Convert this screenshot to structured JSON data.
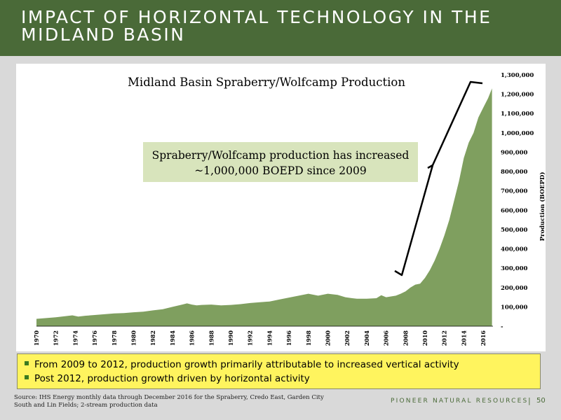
{
  "header": {
    "title": "IMPACT OF HORIZONTAL TECHNOLOGY IN THE MIDLAND BASIN"
  },
  "chart_data": {
    "type": "area",
    "title": "Midland Basin Spraberry/Wolfcamp Production",
    "ylabel": "Production (BOEPD)",
    "xlabel": "",
    "xlim": [
      1970,
      2017
    ],
    "ylim": [
      0,
      1300000
    ],
    "y_ticks": [
      "-",
      "100,000",
      "200,000",
      "300,000",
      "400,000",
      "500,000",
      "600,000",
      "700,000",
      "800,000",
      "900,000",
      "1,000,000",
      "1,100,000",
      "1,200,000",
      "1,300,000"
    ],
    "x_ticks": [
      "1970",
      "1972",
      "1974",
      "1976",
      "1978",
      "1980",
      "1982",
      "1984",
      "1986",
      "1988",
      "1990",
      "1992",
      "1994",
      "1996",
      "1998",
      "2000",
      "2002",
      "2004",
      "2006",
      "2008",
      "2010",
      "2012",
      "2014",
      "2016"
    ],
    "fill_color": "#7f9f5f",
    "grid": false,
    "annotation": "Spraberry/Wolfcamp production has increased ~1,000,000 BOEPD since 2009",
    "series": [
      {
        "x": [
          1970,
          1971,
          1972,
          1973,
          1973.7,
          1974.3,
          1975,
          1976,
          1977,
          1978,
          1979,
          1980,
          1981,
          1982,
          1983,
          1984,
          1985,
          1985.5,
          1986,
          1986.5,
          1987,
          1988,
          1989,
          1990,
          1991,
          1992,
          1993,
          1994,
          1995,
          1996,
          1997,
          1998,
          1999,
          2000,
          2001,
          2001.8,
          2002.5,
          2003,
          2004,
          2005,
          2005.5,
          2006,
          2007,
          2007.5,
          2008,
          2008.5,
          2009,
          2009.5,
          2010,
          2010.5,
          2011,
          2011.5,
          2012,
          2012.5,
          2013,
          2013.5,
          2014,
          2014.5,
          2015,
          2015.5,
          2016,
          2016.5,
          2016.9
        ],
        "values": [
          38000,
          42000,
          46000,
          52000,
          56000,
          50000,
          54000,
          58000,
          62000,
          66000,
          68000,
          72000,
          75000,
          82000,
          88000,
          100000,
          112000,
          118000,
          112000,
          108000,
          110000,
          112000,
          108000,
          110000,
          114000,
          120000,
          124000,
          128000,
          138000,
          148000,
          158000,
          168000,
          158000,
          168000,
          162000,
          150000,
          145000,
          142000,
          142000,
          145000,
          160000,
          150000,
          158000,
          168000,
          180000,
          200000,
          215000,
          220000,
          250000,
          290000,
          340000,
          400000,
          470000,
          550000,
          650000,
          750000,
          870000,
          950000,
          1000000,
          1080000,
          1130000,
          1180000,
          1230000
        ]
      }
    ]
  },
  "bullets": [
    "From 2009 to 2012, production growth primarily attributable to increased vertical activity",
    "Post 2012, production growth driven by horizontal activity"
  ],
  "source": "Source: IHS Energy monthly data through December 2016 for the Spraberry, Credo East, Garden City South and Lin Fields; 2-stream production data",
  "footer": {
    "company": "PIONEER NATURAL RESOURCES",
    "separator": "|",
    "page": "50"
  }
}
